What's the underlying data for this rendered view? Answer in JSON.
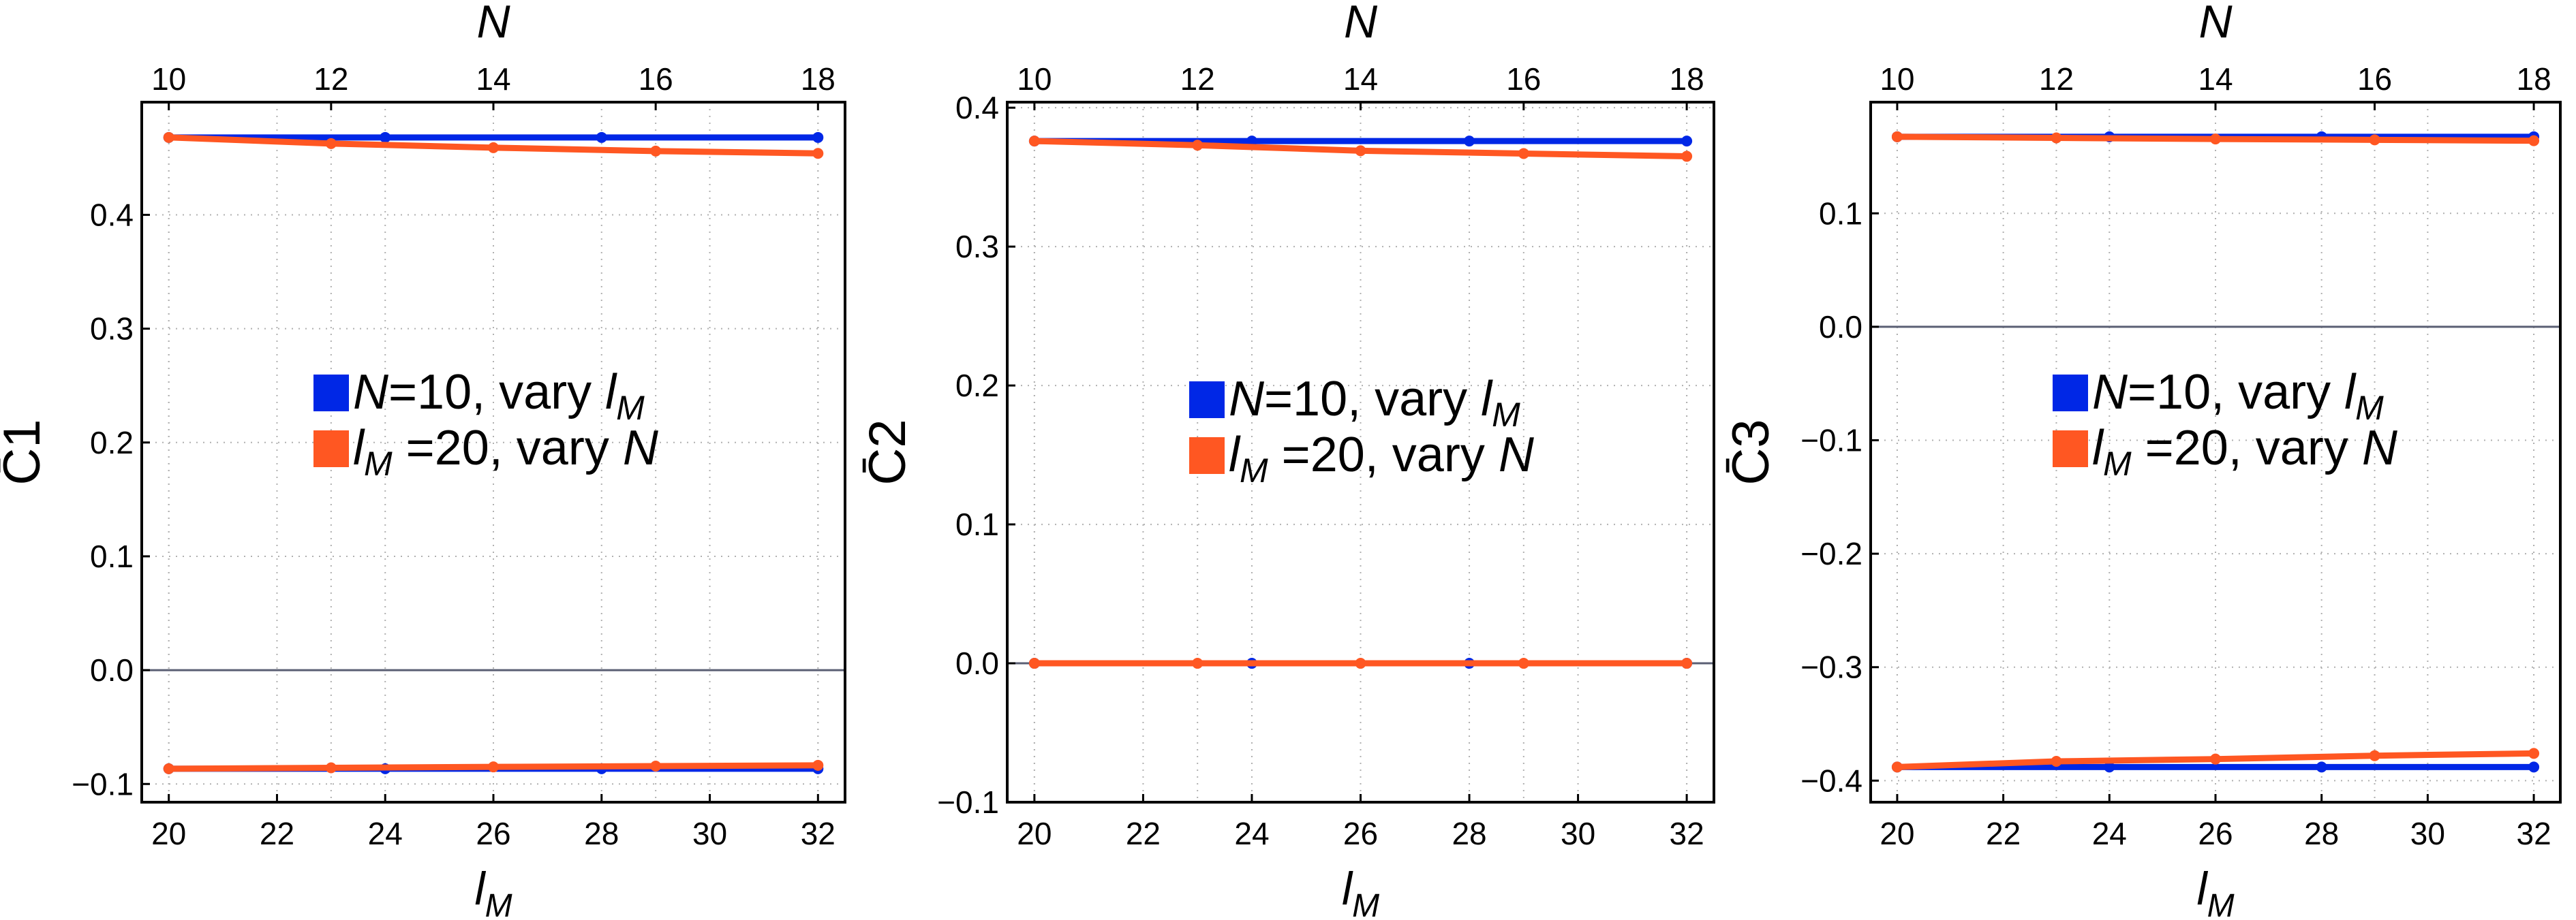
{
  "colors": {
    "series1": "#0027E6",
    "series2": "#FF5722",
    "zero_line": "#5A5F73",
    "grid": "#B0B0B0"
  },
  "chart_data": [
    {
      "type": "line",
      "ylabel": "C̄1",
      "ylabel_base": "C",
      "ylabel_sub": "1",
      "xlabel_base": "l",
      "xlabel_sub": "M",
      "x2label": "N",
      "xlim": [
        19.5,
        32.5
      ],
      "ylim": [
        -0.116,
        0.499
      ],
      "xticks": [
        20,
        22,
        24,
        26,
        28,
        30,
        32
      ],
      "x2ticks": [
        10,
        12,
        14,
        16,
        18
      ],
      "yticks": [
        "-0.1",
        "0.0",
        "0.1",
        "0.2",
        "0.3",
        "0.4"
      ],
      "grid": true,
      "legend": [
        {
          "label": "N=10, vary l_M",
          "parts": [
            "N",
            "=10, vary ",
            "l",
            "M"
          ]
        },
        {
          "label": "l_M =20, vary N",
          "parts": [
            "l",
            "M",
            " =20, vary ",
            "N"
          ]
        }
      ],
      "series": [
        {
          "name": "N=10, vary l_M (upper)",
          "x": [
            20,
            24,
            28,
            32
          ],
          "y": [
            0.468,
            0.468,
            0.468,
            0.468
          ]
        },
        {
          "name": "l_M=20, vary N (upper)",
          "N": [
            10,
            12,
            14,
            16,
            18
          ],
          "x": [
            20,
            23,
            26,
            29,
            32
          ],
          "y": [
            0.468,
            0.4626,
            0.459,
            0.456,
            0.454
          ]
        },
        {
          "name": "N=10, vary l_M (lower)",
          "x": [
            20,
            24,
            28,
            32
          ],
          "y": [
            -0.0866,
            -0.0866,
            -0.0866,
            -0.0866
          ]
        },
        {
          "name": "l_M=20, vary N (lower)",
          "N": [
            10,
            12,
            14,
            16,
            18
          ],
          "x": [
            20,
            23,
            26,
            29,
            32
          ],
          "y": [
            -0.0866,
            -0.0858,
            -0.085,
            -0.0843,
            -0.0836
          ]
        }
      ]
    },
    {
      "type": "line",
      "ylabel": "C̄2",
      "ylabel_base": "C",
      "ylabel_sub": "2",
      "xlabel_base": "l",
      "xlabel_sub": "M",
      "x2label": "N",
      "xlim": [
        19.5,
        32.5
      ],
      "ylim": [
        -0.1,
        0.404
      ],
      "xticks": [
        20,
        22,
        24,
        26,
        28,
        30,
        32
      ],
      "x2ticks": [
        10,
        12,
        14,
        16,
        18
      ],
      "yticks": [
        "-0.1",
        "0.0",
        "0.1",
        "0.2",
        "0.3",
        "0.4"
      ],
      "grid": true,
      "legend": [
        {
          "label": "N=10, vary l_M",
          "parts": [
            "N",
            "=10, vary ",
            "l",
            "M"
          ]
        },
        {
          "label": "l_M =20, vary N",
          "parts": [
            "l",
            "M",
            " =20, vary ",
            "N"
          ]
        }
      ],
      "series": [
        {
          "name": "N=10, vary l_M (upper)",
          "x": [
            20,
            24,
            28,
            32
          ],
          "y": [
            0.376,
            0.376,
            0.376,
            0.376
          ]
        },
        {
          "name": "l_M=20, vary N (upper)",
          "N": [
            10,
            12,
            14,
            16,
            18
          ],
          "x": [
            20,
            23,
            26,
            29,
            32
          ],
          "y": [
            0.376,
            0.373,
            0.369,
            0.367,
            0.365
          ]
        },
        {
          "name": "N=10, vary l_M (lower)",
          "x": [
            20,
            24,
            28,
            32
          ],
          "y": [
            0.0,
            0.0,
            0.0,
            0.0
          ]
        },
        {
          "name": "l_M=20, vary N (lower)",
          "N": [
            10,
            12,
            14,
            16,
            18
          ],
          "x": [
            20,
            23,
            26,
            29,
            32
          ],
          "y": [
            0.0,
            0.0,
            0.0,
            0.0,
            0.0
          ]
        }
      ]
    },
    {
      "type": "line",
      "ylabel": "C̄3",
      "ylabel_base": "C",
      "ylabel_sub": "3",
      "xlabel_base": "l",
      "xlabel_sub": "M",
      "x2label": "N",
      "xlim": [
        19.5,
        32.5
      ],
      "ylim": [
        -0.419,
        0.198
      ],
      "xticks": [
        20,
        22,
        24,
        26,
        28,
        30,
        32
      ],
      "x2ticks": [
        10,
        12,
        14,
        16,
        18
      ],
      "yticks": [
        "-0.4",
        "-0.3",
        "-0.2",
        "-0.1",
        "0.0",
        "0.1"
      ],
      "grid": true,
      "legend": [
        {
          "label": "N=10, vary l_M",
          "parts": [
            "N",
            "=10, vary ",
            "l",
            "M"
          ]
        },
        {
          "label": "l_M =20, vary N",
          "parts": [
            "l",
            "M",
            " =20, vary ",
            "N"
          ]
        }
      ],
      "series": [
        {
          "name": "N=10, vary l_M (upper)",
          "x": [
            20,
            24,
            28,
            32
          ],
          "y": [
            0.1675,
            0.1675,
            0.1675,
            0.1675
          ]
        },
        {
          "name": "l_M=20, vary N (upper)",
          "N": [
            10,
            12,
            14,
            16,
            18
          ],
          "x": [
            20,
            23,
            26,
            29,
            32
          ],
          "y": [
            0.1675,
            0.1665,
            0.1655,
            0.1648,
            0.164
          ]
        },
        {
          "name": "N=10, vary l_M (lower)",
          "x": [
            20,
            24,
            28,
            32
          ],
          "y": [
            -0.388,
            -0.388,
            -0.388,
            -0.388
          ]
        },
        {
          "name": "l_M=20, vary N (lower)",
          "N": [
            10,
            12,
            14,
            16,
            18
          ],
          "x": [
            20,
            23,
            26,
            29,
            32
          ],
          "y": [
            -0.388,
            -0.383,
            -0.381,
            -0.378,
            -0.376
          ]
        }
      ]
    }
  ]
}
